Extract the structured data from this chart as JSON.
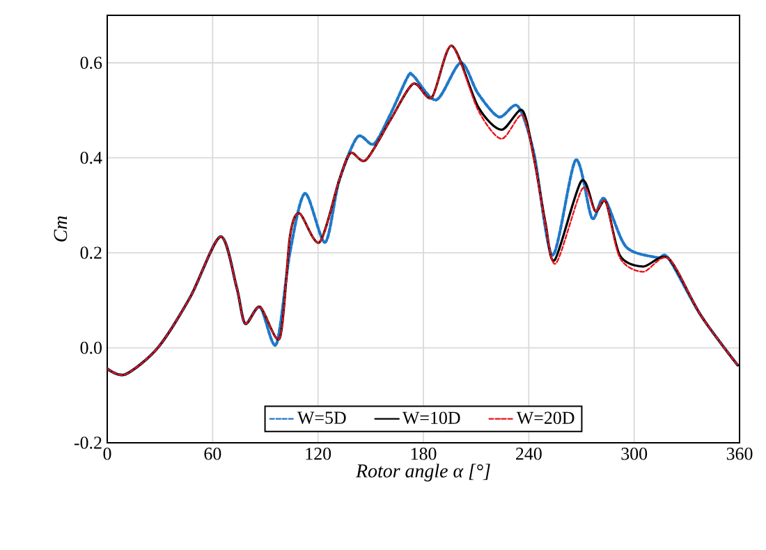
{
  "chart_data": {
    "type": "line",
    "xlabel": "Rotor angle α [°]",
    "ylabel": "Cm",
    "xlim": [
      0,
      360
    ],
    "xticks": [
      0,
      60,
      120,
      180,
      240,
      300,
      360
    ],
    "ylim": [
      -0.2,
      0.7
    ],
    "yticks": [
      -0.2,
      {
        "value": 0,
        "label": "0.0"
      },
      0.2,
      0.4,
      0.6
    ],
    "grid": true,
    "legend": "bottom",
    "marker": "none",
    "series": [
      {
        "name": "W=5D",
        "color": "#1f78c8",
        "line_style": "dashed",
        "x": [
          0,
          10.3,
          28.8,
          47.3,
          64.5,
          73.7,
          78.5,
          87,
          96.2,
          104,
          112.6,
          124,
          131.9,
          142.5,
          151.7,
          161,
          171,
          174.2,
          187.4,
          201.2,
          211,
          223,
          233.7,
          242.9,
          253.5,
          266.7,
          276,
          283,
          295.3,
          313,
          319.6,
          338,
          359
        ],
        "values": [
          -0.044,
          -0.056,
          0.0,
          0.107,
          0.234,
          0.127,
          0.051,
          0.086,
          0.007,
          0.2,
          0.325,
          0.222,
          0.35,
          0.444,
          0.429,
          0.49,
          0.57,
          0.573,
          0.522,
          0.6,
          0.536,
          0.486,
          0.509,
          0.41,
          0.195,
          0.395,
          0.273,
          0.314,
          0.213,
          0.19,
          0.188,
          0.068,
          -0.037
        ]
      },
      {
        "name": "W=10D",
        "color": "#000000",
        "line_style": "solid",
        "x": [
          0,
          10.3,
          28.8,
          47.3,
          64.5,
          73.7,
          78.5,
          87,
          98.3,
          104,
          109.4,
          120.8,
          131.9,
          138.5,
          147.2,
          161,
          174.2,
          184.8,
          196.1,
          211.2,
          224.4,
          236.3,
          242.9,
          249.5,
          254.8,
          269.9,
          277.8,
          283.9,
          291.8,
          305,
          319.6,
          338,
          359
        ],
        "values": [
          -0.044,
          -0.056,
          0.0,
          0.107,
          0.234,
          0.127,
          0.051,
          0.086,
          0.021,
          0.234,
          0.283,
          0.222,
          0.351,
          0.41,
          0.395,
          0.478,
          0.556,
          0.527,
          0.636,
          0.507,
          0.459,
          0.5,
          0.4,
          0.263,
          0.185,
          0.351,
          0.288,
          0.307,
          0.195,
          0.171,
          0.188,
          0.068,
          -0.037
        ]
      },
      {
        "name": "W=20D",
        "color": "#e8141c",
        "line_style": "dashed",
        "x": [
          0,
          10.3,
          28.8,
          47.3,
          64.5,
          73.7,
          78.5,
          87,
          98.3,
          104,
          109.4,
          120.8,
          131.9,
          138.5,
          147.2,
          161,
          174.2,
          184.8,
          196.1,
          211.2,
          224.4,
          236.3,
          242.9,
          249.5,
          255.5,
          270.5,
          277.8,
          283.9,
          291.8,
          305,
          319.6,
          338,
          359
        ],
        "values": [
          -0.044,
          -0.056,
          0.0,
          0.107,
          0.234,
          0.127,
          0.051,
          0.086,
          0.021,
          0.234,
          0.283,
          0.222,
          0.351,
          0.41,
          0.395,
          0.478,
          0.556,
          0.527,
          0.636,
          0.5,
          0.44,
          0.49,
          0.4,
          0.26,
          0.178,
          0.335,
          0.288,
          0.307,
          0.19,
          0.16,
          0.188,
          0.068,
          -0.037
        ]
      }
    ]
  }
}
